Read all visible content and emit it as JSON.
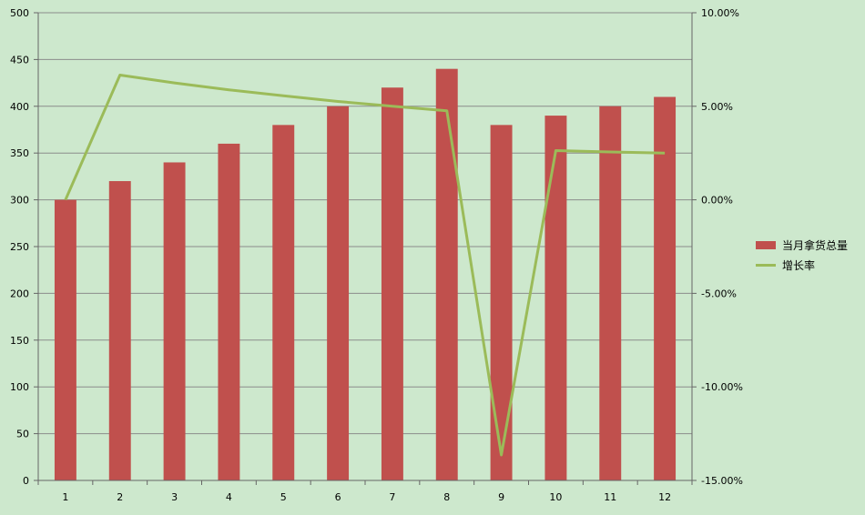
{
  "chart_data": {
    "type": "bar",
    "categories": [
      "1",
      "2",
      "3",
      "4",
      "5",
      "6",
      "7",
      "8",
      "9",
      "10",
      "11",
      "12"
    ],
    "series": [
      {
        "name": "当月拿货总量",
        "type": "bar",
        "axis": "left",
        "color": "#c0504d",
        "values": [
          300,
          320,
          340,
          360,
          380,
          400,
          420,
          440,
          380,
          390,
          400,
          410
        ]
      },
      {
        "name": "增长率",
        "type": "line",
        "axis": "right",
        "color": "#9bbb59",
        "values": [
          0.0,
          6.67,
          6.25,
          5.88,
          5.56,
          5.26,
          5.0,
          4.76,
          -13.64,
          2.63,
          2.56,
          2.5
        ]
      }
    ],
    "y_left": {
      "min": 0,
      "max": 500,
      "ticks": [
        "0",
        "50",
        "100",
        "150",
        "200",
        "250",
        "300",
        "350",
        "400",
        "450",
        "500"
      ]
    },
    "y_right": {
      "min": -15,
      "max": 10,
      "ticks": [
        "-15.00%",
        "-10.00%",
        "-5.00%",
        "0.00%",
        "5.00%",
        "10.00%"
      ]
    },
    "grid": true,
    "legend_position": "right"
  }
}
